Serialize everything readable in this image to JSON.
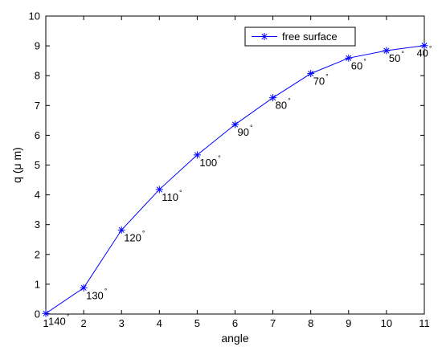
{
  "chart_data": {
    "type": "line",
    "title": "",
    "xlabel": "angle",
    "ylabel": "q (μ m)",
    "xlim": [
      1,
      11
    ],
    "ylim": [
      0,
      10
    ],
    "x_ticks": [
      "1",
      "2",
      "3",
      "4",
      "5",
      "6",
      "7",
      "8",
      "9",
      "10",
      "11"
    ],
    "y_ticks": [
      "0",
      "1",
      "2",
      "3",
      "4",
      "5",
      "6",
      "7",
      "8",
      "9",
      "10"
    ],
    "grid": false,
    "legend_position": "top-right",
    "series": [
      {
        "name": "free surface",
        "color": "#0000ff",
        "marker": "asterisk",
        "x": [
          1,
          2,
          3,
          4,
          5,
          6,
          7,
          8,
          9,
          10,
          11
        ],
        "y": [
          0.02,
          0.88,
          2.82,
          4.18,
          5.34,
          6.36,
          7.26,
          8.07,
          8.59,
          8.84,
          9.01
        ]
      }
    ],
    "annotations": [
      {
        "x": 1,
        "y": 0.02,
        "text": "140",
        "unit": "°"
      },
      {
        "x": 2,
        "y": 0.88,
        "text": "130",
        "unit": "°"
      },
      {
        "x": 3,
        "y": 2.82,
        "text": "120",
        "unit": "°"
      },
      {
        "x": 4,
        "y": 4.18,
        "text": "110",
        "unit": "°"
      },
      {
        "x": 5,
        "y": 5.34,
        "text": "100",
        "unit": "°"
      },
      {
        "x": 6,
        "y": 6.36,
        "text": "90",
        "unit": "°"
      },
      {
        "x": 7,
        "y": 7.26,
        "text": "80",
        "unit": "°"
      },
      {
        "x": 8,
        "y": 8.07,
        "text": "70",
        "unit": "°"
      },
      {
        "x": 9,
        "y": 8.59,
        "text": "60",
        "unit": "°"
      },
      {
        "x": 10,
        "y": 8.84,
        "text": "50",
        "unit": "°"
      },
      {
        "x": 11,
        "y": 9.01,
        "text": "40",
        "unit": "°"
      }
    ]
  }
}
